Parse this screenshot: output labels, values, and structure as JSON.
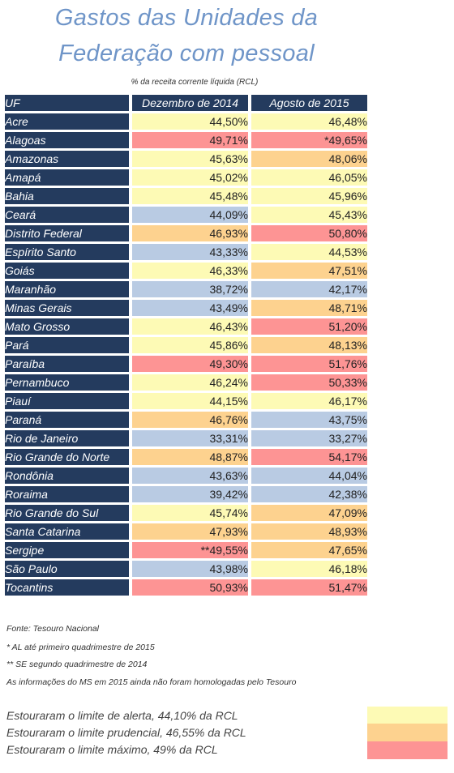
{
  "chart_data": {
    "type": "table",
    "title_line1": "Gastos das Unidades da",
    "title_line2": "Federação com pessoal",
    "subtitle": "% da receita corrente líquida (RCL)",
    "columns": [
      "UF",
      "Dezembro de 2014",
      "Agosto de 2015"
    ],
    "colors": {
      "header": "#243b5e",
      "blue": "#b9cbe3",
      "yellow": "#fdfab5",
      "orange": "#fdd28f",
      "red": "#fd9494"
    },
    "rows": [
      {
        "uf": "Acre",
        "dez": "44,50%",
        "ago": "46,48%",
        "c1": "yellow",
        "c2": "yellow"
      },
      {
        "uf": "Alagoas",
        "dez": "49,71%",
        "ago": "*49,65%",
        "c1": "red",
        "c2": "red"
      },
      {
        "uf": "Amazonas",
        "dez": "45,63%",
        "ago": "48,06%",
        "c1": "yellow",
        "c2": "orange"
      },
      {
        "uf": "Amapá",
        "dez": "45,02%",
        "ago": "46,05%",
        "c1": "yellow",
        "c2": "yellow"
      },
      {
        "uf": "Bahia",
        "dez": "45,48%",
        "ago": "45,96%",
        "c1": "yellow",
        "c2": "yellow"
      },
      {
        "uf": "Ceará",
        "dez": "44,09%",
        "ago": "45,43%",
        "c1": "blue",
        "c2": "yellow"
      },
      {
        "uf": "Distrito Federal",
        "dez": "46,93%",
        "ago": "50,80%",
        "c1": "orange",
        "c2": "red"
      },
      {
        "uf": "Espírito Santo",
        "dez": "43,33%",
        "ago": "44,53%",
        "c1": "blue",
        "c2": "yellow"
      },
      {
        "uf": "Goiás",
        "dez": "46,33%",
        "ago": "47,51%",
        "c1": "yellow",
        "c2": "orange"
      },
      {
        "uf": "Maranhão",
        "dez": "38,72%",
        "ago": "42,17%",
        "c1": "blue",
        "c2": "blue"
      },
      {
        "uf": "Minas Gerais",
        "dez": "43,49%",
        "ago": "48,71%",
        "c1": "blue",
        "c2": "orange"
      },
      {
        "uf": "Mato Grosso",
        "dez": "46,43%",
        "ago": "51,20%",
        "c1": "yellow",
        "c2": "red"
      },
      {
        "uf": "Pará",
        "dez": "45,86%",
        "ago": "48,13%",
        "c1": "yellow",
        "c2": "orange"
      },
      {
        "uf": "Paraíba",
        "dez": "49,30%",
        "ago": "51,76%",
        "c1": "red",
        "c2": "red"
      },
      {
        "uf": "Pernambuco",
        "dez": "46,24%",
        "ago": "50,33%",
        "c1": "yellow",
        "c2": "red"
      },
      {
        "uf": "Piauí",
        "dez": "44,15%",
        "ago": "46,17%",
        "c1": "yellow",
        "c2": "yellow"
      },
      {
        "uf": "Paraná",
        "dez": "46,76%",
        "ago": "43,75%",
        "c1": "orange",
        "c2": "blue"
      },
      {
        "uf": "Rio de Janeiro",
        "dez": "33,31%",
        "ago": "33,27%",
        "c1": "blue",
        "c2": "blue"
      },
      {
        "uf": "Rio Grande do Norte",
        "dez": "48,87%",
        "ago": "54,17%",
        "c1": "orange",
        "c2": "red"
      },
      {
        "uf": "Rondônia",
        "dez": "43,63%",
        "ago": "44,04%",
        "c1": "blue",
        "c2": "blue"
      },
      {
        "uf": "Roraima",
        "dez": "39,42%",
        "ago": "42,38%",
        "c1": "blue",
        "c2": "blue"
      },
      {
        "uf": "Rio Grande do Sul",
        "dez": "45,74%",
        "ago": "47,09%",
        "c1": "yellow",
        "c2": "orange"
      },
      {
        "uf": "Santa Catarina",
        "dez": "47,93%",
        "ago": "48,93%",
        "c1": "orange",
        "c2": "orange"
      },
      {
        "uf": "Sergipe",
        "dez": "**49,55%",
        "ago": "47,65%",
        "c1": "red",
        "c2": "orange"
      },
      {
        "uf": "São Paulo",
        "dez": "43,98%",
        "ago": "46,18%",
        "c1": "blue",
        "c2": "yellow"
      },
      {
        "uf": "Tocantins",
        "dez": "50,93%",
        "ago": "51,47%",
        "c1": "red",
        "c2": "red"
      }
    ],
    "notes": [
      "Fonte: Tesouro Nacional",
      "* AL até primeiro quadrimestre de 2015",
      "** SE segundo quadrimestre de 2014",
      "As informações do MS em 2015 ainda não foram homologadas pelo Tesouro"
    ],
    "legend": [
      {
        "label": "Estouraram o limite de alerta, 44,10% da RCL",
        "color": "yellow"
      },
      {
        "label": "Estouraram o limite prudencial, 46,55% da RCL",
        "color": "orange"
      },
      {
        "label": "Estouraram o limite máximo, 49% da RCL",
        "color": "red"
      }
    ]
  }
}
